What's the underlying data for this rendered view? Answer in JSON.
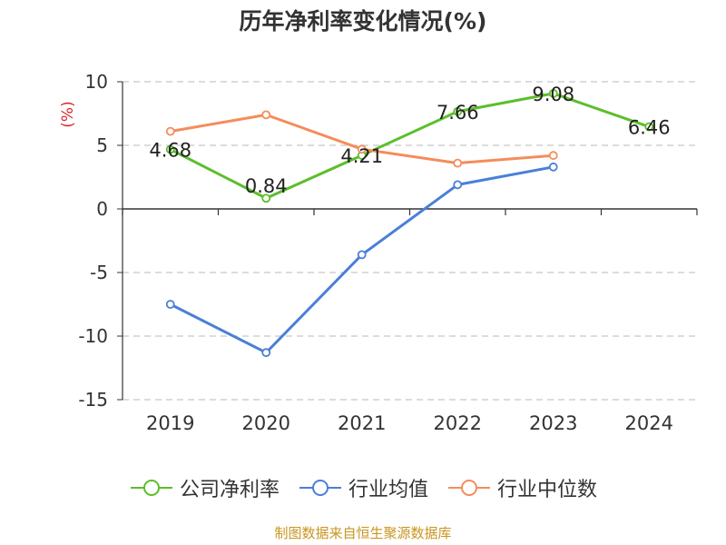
{
  "title": "历年净利率变化情况(%)",
  "source": "制图数据来自恒生聚源数据库",
  "colors": {
    "company": "#5cbf2a",
    "industry_avg": "#4a7fd8",
    "industry_median": "#f58c5a",
    "unit_label": "#d9272e",
    "source_text": "#c8961e"
  },
  "chart_data": {
    "type": "line",
    "title": "历年净利率变化情况(%)",
    "ylabel": "(%)",
    "xlabel": "",
    "categories": [
      "2019",
      "2020",
      "2021",
      "2022",
      "2023",
      "2024"
    ],
    "ylim": [
      -15,
      10
    ],
    "yticks": [
      "10",
      "5",
      "0",
      "-5",
      "-10",
      "-15"
    ],
    "grid": true,
    "legend_position": "bottom",
    "series": [
      {
        "name": "公司净利率",
        "key": "company",
        "values": [
          4.68,
          0.84,
          4.21,
          7.66,
          9.08,
          6.46
        ],
        "labels": [
          "4.68",
          "0.84",
          "4.21",
          "7.66",
          "9.08",
          "6.46"
        ]
      },
      {
        "name": "行业均值",
        "key": "industry_avg",
        "values": [
          -7.5,
          -11.3,
          -3.6,
          1.9,
          3.3,
          null
        ]
      },
      {
        "name": "行业中位数",
        "key": "industry_median",
        "values": [
          6.1,
          7.4,
          4.7,
          3.6,
          4.2,
          null
        ]
      }
    ]
  }
}
